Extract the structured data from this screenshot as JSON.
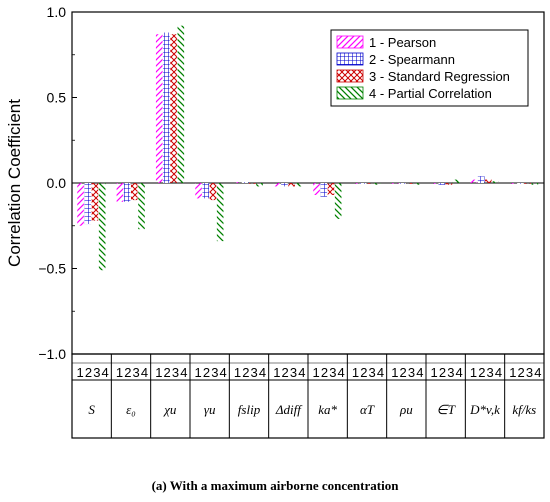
{
  "chart_data": {
    "type": "bar",
    "ylabel": "Correlation Coefficient",
    "ylim": [
      -1.0,
      1.0
    ],
    "yticks": [
      1.0,
      0.5,
      0.0,
      -0.5,
      -1.0
    ],
    "ytick_labels": [
      "1.0",
      "0.5",
      "0.0",
      "−0.5",
      "−1.0"
    ],
    "grid": false,
    "legend_position": "top-right",
    "categories": [
      "S",
      "ε₀",
      "χu",
      "γu",
      "fslip",
      "Δdiff",
      "ka*",
      "αT",
      "ρu",
      "∈T",
      "D*v,k",
      "kf/ks"
    ],
    "sub_labels": [
      "1",
      "2",
      "3",
      "4"
    ],
    "series": [
      {
        "name": "1 - Pearson",
        "color": "#ff00ff",
        "pattern": "diagonal-lines",
        "values": [
          -0.25,
          -0.11,
          0.87,
          -0.09,
          0.005,
          -0.02,
          -0.07,
          0.0,
          0.0,
          0.0,
          0.02,
          0.0
        ]
      },
      {
        "name": "2 - Spearmann",
        "color": "#0000cc",
        "pattern": "grid",
        "values": [
          -0.24,
          -0.11,
          0.88,
          -0.09,
          0.005,
          -0.02,
          -0.08,
          -0.005,
          -0.005,
          -0.01,
          0.04,
          0.0
        ]
      },
      {
        "name": "3 - Standard Regression",
        "color": "#cc0000",
        "pattern": "crosshatch",
        "values": [
          -0.22,
          -0.1,
          0.87,
          -0.1,
          0.0,
          -0.02,
          -0.07,
          0.0,
          0.0,
          -0.01,
          0.02,
          0.0
        ]
      },
      {
        "name": "4 - Partial Correlation",
        "color": "#008000",
        "pattern": "reverse-diagonal-lines",
        "values": [
          -0.51,
          -0.27,
          0.92,
          -0.34,
          -0.02,
          -0.02,
          -0.21,
          -0.01,
          -0.01,
          0.02,
          0.01,
          -0.01
        ]
      }
    ]
  },
  "caption": "(a) With a maximum airborne concentration"
}
